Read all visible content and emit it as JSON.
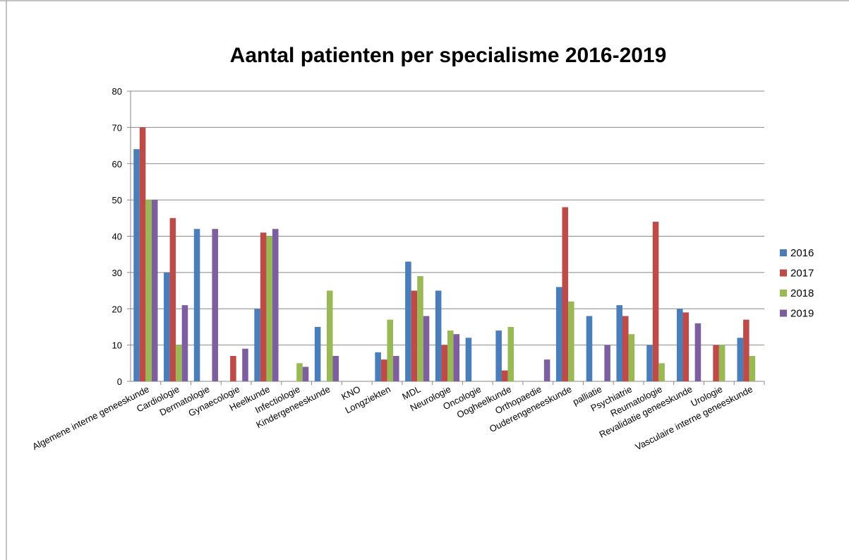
{
  "chart_data": {
    "type": "bar",
    "title": "Aantal patienten per specialisme 2016-2019",
    "categories": [
      "Algemene interne geneeskunde",
      "Cardiologie",
      "Dermatologie",
      "Gynaecologie",
      "Heelkunde",
      "Infectiologie",
      "Kindergeneeskunde",
      "KNO",
      "Longziekten",
      "MDL",
      "Neurologie",
      "Oncologie",
      "Oogheelkunde",
      "Orthopaedie",
      "Ouderengeneeskunde",
      "palliatie",
      "Psychiatrie",
      "Reumatologie",
      "Revalidatie geneeskunde",
      "Urologie",
      "Vasculaire interne geneeskunde"
    ],
    "series": [
      {
        "name": "2016",
        "color": "#4a7ebb",
        "values": [
          64,
          30,
          42,
          null,
          20,
          null,
          15,
          null,
          8,
          33,
          25,
          12,
          14,
          null,
          26,
          18,
          21,
          10,
          20,
          null,
          12
        ]
      },
      {
        "name": "2017",
        "color": "#be4b48",
        "values": [
          70,
          45,
          null,
          7,
          41,
          null,
          null,
          null,
          6,
          25,
          10,
          null,
          3,
          null,
          48,
          null,
          18,
          44,
          19,
          10,
          17
        ]
      },
      {
        "name": "2018",
        "color": "#98b954",
        "values": [
          50,
          10,
          null,
          null,
          40,
          5,
          25,
          null,
          17,
          29,
          14,
          null,
          15,
          null,
          22,
          null,
          13,
          5,
          null,
          10,
          7
        ]
      },
      {
        "name": "2019",
        "color": "#7d5fa0",
        "values": [
          50,
          21,
          42,
          9,
          42,
          4,
          7,
          null,
          7,
          18,
          13,
          null,
          null,
          6,
          null,
          10,
          null,
          null,
          16,
          null,
          null
        ]
      }
    ],
    "ylim": [
      0,
      80
    ],
    "yticks": [
      0,
      10,
      20,
      30,
      40,
      50,
      60,
      70,
      80
    ],
    "grid": true,
    "legend": "right"
  }
}
